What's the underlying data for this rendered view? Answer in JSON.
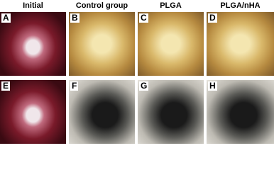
{
  "columns": [
    "Initial",
    "Control group",
    "PLGA",
    "PLGA/nHA"
  ],
  "panel_labels": [
    "A",
    "B",
    "C",
    "D",
    "E",
    "F",
    "G",
    "H"
  ]
}
